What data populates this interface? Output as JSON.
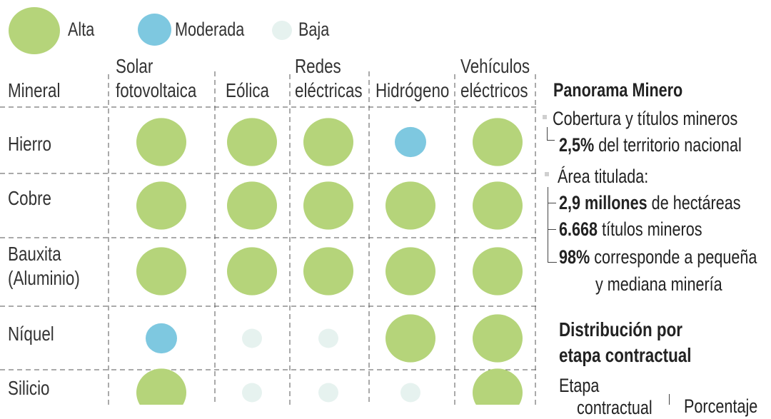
{
  "legend": {
    "items": [
      {
        "label": "Alta",
        "color": "#b5d47a"
      },
      {
        "label": "Moderada",
        "color": "#7ec8e0"
      },
      {
        "label": "Baja",
        "color": "#e6f2ef"
      }
    ]
  },
  "chart_data": {
    "type": "table",
    "title": "",
    "row_header": "Mineral",
    "columns": [
      "Solar fotovoltaica",
      "Eólica",
      "Redes eléctricas",
      "Hidrógeno",
      "Vehículos eléctricos"
    ],
    "column_lines": [
      [
        "Solar",
        "fotovoltaica"
      ],
      [
        "",
        "Eólica"
      ],
      [
        "Redes",
        "eléctricas"
      ],
      [
        "",
        "Hidrógeno"
      ],
      [
        "Vehículos",
        "eléctricos"
      ]
    ],
    "rows": [
      {
        "mineral": "Hierro",
        "lines": [
          "Hierro"
        ],
        "levels": [
          "Alta",
          "Alta",
          "Alta",
          "Moderada",
          "Alta"
        ]
      },
      {
        "mineral": "Cobre",
        "lines": [
          "Cobre"
        ],
        "levels": [
          "Alta",
          "Alta",
          "Alta",
          "Alta",
          "Alta"
        ]
      },
      {
        "mineral": "Bauxita (Aluminio)",
        "lines": [
          "Bauxita",
          "(Aluminio)"
        ],
        "levels": [
          "Alta",
          "Alta",
          "Alta",
          "Alta",
          "Alta"
        ]
      },
      {
        "mineral": "Níquel",
        "lines": [
          "Níquel"
        ],
        "levels": [
          "Moderada",
          "Baja",
          "Baja",
          "Alta",
          "Alta"
        ]
      },
      {
        "mineral": "Silicio",
        "lines": [
          "Silicio"
        ],
        "levels": [
          "Alta",
          "Baja",
          "Baja",
          "Baja",
          "Alta"
        ]
      }
    ]
  },
  "sidebar": {
    "title": "Panorama Minero",
    "cobertura": {
      "label": "Cobertura y títulos mineros",
      "value_bold": "2,5%",
      "value_text": "del territorio nacional"
    },
    "area": {
      "label": "Área titulada:",
      "hectareas_bold": "2,9 millones",
      "hectareas_text": "de hectáreas",
      "titulos_bold": "6.668",
      "titulos_text": "títulos mineros",
      "pct_bold": "98%",
      "pct_text": "corresponde a pequeña",
      "pct_text2": "y mediana minería"
    },
    "distribucion": {
      "title_line1": "Distribución por",
      "title_line2": "etapa contractual",
      "etapa_label": "Etapa",
      "etapa_sub": "contractual",
      "porcentaje_label": "Porcentaje"
    }
  }
}
